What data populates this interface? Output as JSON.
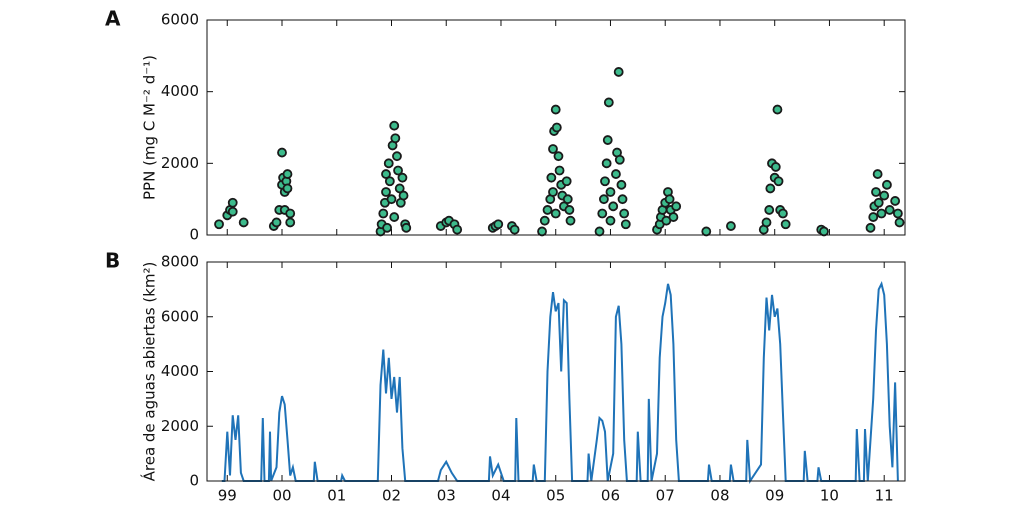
{
  "chart_data": [
    {
      "type": "scatter",
      "panel_label": "A",
      "ylabel": "PPN (mg C M⁻² d⁻¹)",
      "marker_color": "#3dbb8c",
      "edge_color": "#1a1a1a",
      "xlim": [
        1998.63,
        2011.38
      ],
      "ylim": [
        0,
        6000
      ],
      "yticks": [
        0,
        2000,
        4000,
        6000
      ],
      "xticks": [
        1999,
        2000,
        2001,
        2002,
        2003,
        2004,
        2005,
        2006,
        2007,
        2008,
        2009,
        2010,
        2011
      ],
      "x": [
        1998.85,
        1999.0,
        1999.05,
        1999.1,
        1999.1,
        1999.3,
        1999.85,
        1999.9,
        1999.95,
        2000.0,
        2000.0,
        2000.02,
        2000.05,
        2000.08,
        2000.1,
        2000.1,
        2000.05,
        2000.15,
        2000.15,
        2001.8,
        2001.82,
        2001.85,
        2001.88,
        2001.9,
        2001.9,
        2001.95,
        2001.97,
        2002.0,
        2002.02,
        2002.05,
        2002.07,
        2002.1,
        2002.12,
        2002.15,
        2002.17,
        2002.2,
        2002.22,
        2002.25,
        2002.27,
        2001.92,
        2002.05,
        2002.9,
        2003.0,
        2003.05,
        2003.15,
        2003.2,
        2003.85,
        2003.9,
        2003.95,
        2004.2,
        2004.25,
        2004.75,
        2004.8,
        2004.85,
        2004.9,
        2004.92,
        2004.95,
        2004.97,
        2005.0,
        2005.02,
        2005.05,
        2005.07,
        2005.1,
        2005.12,
        2005.15,
        2005.2,
        2005.22,
        2005.25,
        2005.27,
        2004.95,
        2005.0,
        2005.8,
        2005.85,
        2005.88,
        2005.9,
        2005.93,
        2005.95,
        2005.97,
        2006.0,
        2006.05,
        2006.1,
        2006.12,
        2006.15,
        2006.17,
        2006.2,
        2006.22,
        2006.25,
        2006.28,
        2006.0,
        2006.85,
        2006.9,
        2006.92,
        2006.95,
        2007.0,
        2007.05,
        2007.08,
        2007.1,
        2007.15,
        2007.2,
        2007.02,
        2007.75,
        2008.2,
        2008.8,
        2008.85,
        2008.9,
        2008.92,
        2008.95,
        2009.0,
        2009.02,
        2009.05,
        2009.07,
        2009.1,
        2009.15,
        2009.2,
        2009.85,
        2009.9,
        2010.75,
        2010.8,
        2010.82,
        2010.85,
        2010.88,
        2010.9,
        2010.95,
        2011.0,
        2011.05,
        2011.1,
        2011.2,
        2011.25,
        2011.28
      ],
      "values": [
        300,
        550,
        700,
        900,
        650,
        350,
        250,
        350,
        700,
        1400,
        2300,
        1600,
        1200,
        1500,
        1700,
        1300,
        700,
        600,
        350,
        100,
        300,
        600,
        900,
        1200,
        1700,
        2000,
        1500,
        1000,
        2500,
        3050,
        2700,
        2200,
        1800,
        1300,
        900,
        1600,
        1100,
        300,
        200,
        200,
        500,
        250,
        350,
        400,
        300,
        150,
        200,
        250,
        300,
        250,
        150,
        100,
        400,
        700,
        1000,
        1600,
        2400,
        2900,
        3500,
        3000,
        2200,
        1800,
        1400,
        1100,
        800,
        1500,
        1000,
        700,
        400,
        1200,
        600,
        100,
        600,
        1000,
        1500,
        2000,
        2650,
        3700,
        1200,
        800,
        1700,
        2300,
        4550,
        2100,
        1400,
        1000,
        600,
        300,
        400,
        150,
        300,
        500,
        700,
        900,
        1200,
        1000,
        700,
        500,
        800,
        400,
        100,
        250,
        150,
        350,
        700,
        1300,
        2000,
        1600,
        1900,
        3500,
        1500,
        700,
        600,
        300,
        150,
        100,
        200,
        500,
        800,
        1200,
        1700,
        900,
        600,
        1100,
        1400,
        700,
        950,
        600,
        350
      ]
    },
    {
      "type": "line",
      "panel_label": "B",
      "ylabel": "Área de aguas abiertas (km²)",
      "color": "#1f73b8",
      "xlim": [
        1998.63,
        2011.38
      ],
      "ylim": [
        0,
        8000
      ],
      "yticks": [
        0,
        2000,
        4000,
        6000,
        8000
      ],
      "xticks": [
        {
          "value": 1999,
          "label": "99"
        },
        {
          "value": 2000,
          "label": "00"
        },
        {
          "value": 2001,
          "label": "01"
        },
        {
          "value": 2002,
          "label": "02"
        },
        {
          "value": 2003,
          "label": "03"
        },
        {
          "value": 2004,
          "label": "04"
        },
        {
          "value": 2005,
          "label": "05"
        },
        {
          "value": 2006,
          "label": "06"
        },
        {
          "value": 2007,
          "label": "07"
        },
        {
          "value": 2008,
          "label": "08"
        },
        {
          "value": 2009,
          "label": "09"
        },
        {
          "value": 2010,
          "label": "10"
        },
        {
          "value": 2011,
          "label": "11"
        }
      ],
      "x": [
        1998.9,
        1998.95,
        1999.0,
        1999.05,
        1999.1,
        1999.15,
        1999.2,
        1999.25,
        1999.3,
        1999.62,
        1999.65,
        1999.68,
        1999.76,
        1999.78,
        1999.8,
        1999.9,
        1999.95,
        2000.0,
        2000.05,
        2000.1,
        2000.15,
        2000.2,
        2000.25,
        2000.58,
        2000.6,
        2000.65,
        2001.08,
        2001.1,
        2001.15,
        2001.75,
        2001.8,
        2001.85,
        2001.9,
        2001.95,
        2002.0,
        2002.05,
        2002.1,
        2002.15,
        2002.2,
        2002.25,
        2002.85,
        2002.9,
        2003.0,
        2003.1,
        2003.2,
        2003.78,
        2003.8,
        2003.85,
        2003.95,
        2004.05,
        2004.26,
        2004.28,
        2004.32,
        2004.58,
        2004.6,
        2004.65,
        2004.8,
        2004.85,
        2004.9,
        2004.95,
        2005.0,
        2005.05,
        2005.1,
        2005.15,
        2005.2,
        2005.25,
        2005.3,
        2005.58,
        2005.6,
        2005.65,
        2005.75,
        2005.8,
        2005.85,
        2005.9,
        2005.95,
        2006.05,
        2006.1,
        2006.15,
        2006.2,
        2006.25,
        2006.3,
        2006.48,
        2006.5,
        2006.55,
        2006.68,
        2006.7,
        2006.75,
        2006.85,
        2006.9,
        2006.95,
        2007.0,
        2007.05,
        2007.1,
        2007.15,
        2007.2,
        2007.25,
        2007.78,
        2007.8,
        2007.85,
        2008.18,
        2008.2,
        2008.25,
        2008.48,
        2008.5,
        2008.55,
        2008.75,
        2008.8,
        2008.85,
        2008.9,
        2008.95,
        2009.0,
        2009.05,
        2009.1,
        2009.15,
        2009.2,
        2009.53,
        2009.55,
        2009.6,
        2009.78,
        2009.8,
        2009.85,
        2010.48,
        2010.5,
        2010.55,
        2010.63,
        2010.65,
        2010.7,
        2010.8,
        2010.85,
        2010.9,
        2010.95,
        2011.0,
        2011.05,
        2011.1,
        2011.15,
        2011.2,
        2011.25
      ],
      "values": [
        0,
        0,
        1800,
        200,
        2400,
        1500,
        2400,
        300,
        0,
        0,
        2300,
        0,
        0,
        1800,
        0,
        500,
        2500,
        3100,
        2800,
        1500,
        200,
        500,
        0,
        0,
        700,
        0,
        0,
        200,
        0,
        0,
        3500,
        4800,
        3200,
        4500,
        3000,
        3800,
        2500,
        3800,
        1200,
        0,
        0,
        400,
        700,
        300,
        0,
        0,
        900,
        200,
        600,
        0,
        0,
        2300,
        0,
        0,
        600,
        0,
        0,
        4000,
        6000,
        6900,
        6200,
        6500,
        4000,
        6600,
        6500,
        3000,
        0,
        0,
        1000,
        0,
        1500,
        2300,
        2200,
        1800,
        0,
        1000,
        6000,
        6400,
        5000,
        1500,
        0,
        0,
        1800,
        0,
        0,
        3000,
        0,
        1000,
        4500,
        6000,
        6500,
        7200,
        6800,
        5000,
        1500,
        0,
        0,
        600,
        0,
        0,
        600,
        0,
        0,
        1500,
        0,
        600,
        4500,
        6700,
        5500,
        6800,
        6000,
        6300,
        5000,
        2500,
        0,
        0,
        1100,
        0,
        0,
        500,
        0,
        0,
        1900,
        0,
        0,
        1900,
        0,
        3000,
        5500,
        7000,
        7200,
        6800,
        5000,
        2000,
        500,
        3600,
        0
      ]
    }
  ]
}
